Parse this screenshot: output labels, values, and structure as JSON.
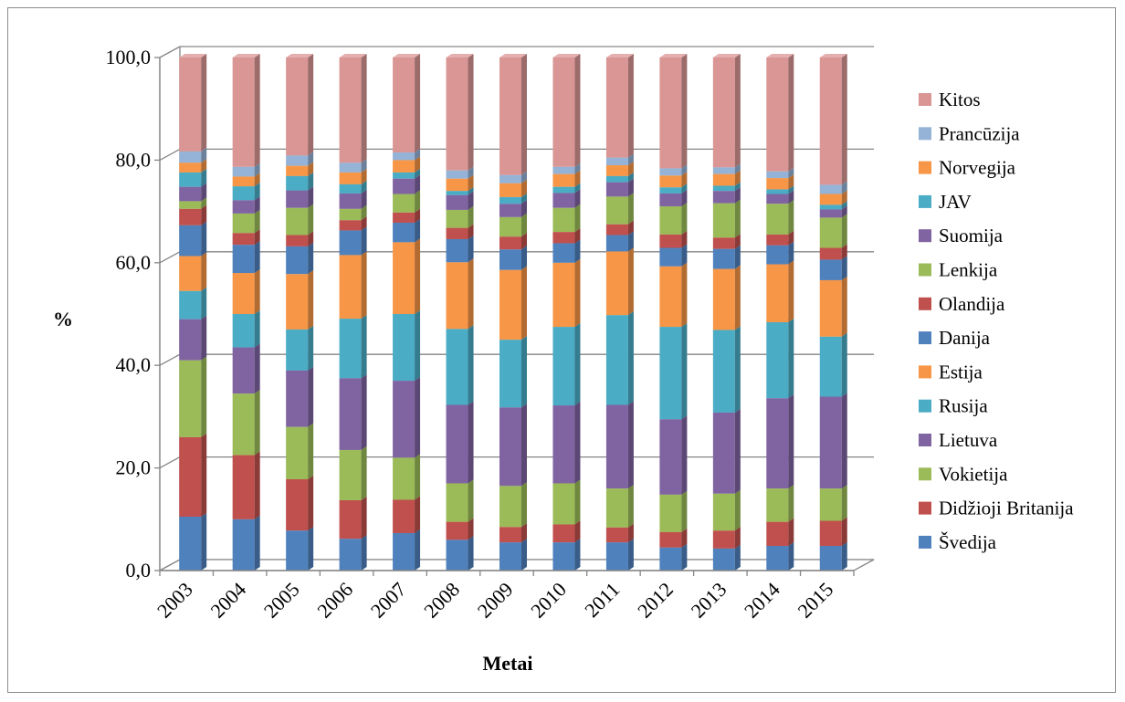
{
  "chart_data": {
    "type": "bar",
    "stacked": true,
    "three_d": true,
    "title": "",
    "xlabel": "Metai",
    "ylabel": "%",
    "ylim": [
      0,
      100
    ],
    "yticks": [
      "0,0",
      "20,0",
      "40,0",
      "60,0",
      "80,0",
      "100,0"
    ],
    "grid": true,
    "legend_position": "right",
    "categories": [
      "2003",
      "2004",
      "2005",
      "2006",
      "2007",
      "2008",
      "2009",
      "2010",
      "2011",
      "2012",
      "2013",
      "2014",
      "2015"
    ],
    "series": [
      {
        "name": "Švedija",
        "color": "#4F81BD",
        "values": [
          10.5,
          10.0,
          7.8,
          6.2,
          7.3,
          6.0,
          5.5,
          5.5,
          5.5,
          4.5,
          4.3,
          4.8,
          4.8
        ]
      },
      {
        "name": "Didžioji Britanija",
        "color": "#C0504D",
        "values": [
          15.5,
          12.5,
          10.0,
          7.5,
          6.5,
          3.5,
          3.0,
          3.5,
          2.9,
          3.0,
          3.5,
          4.7,
          4.9
        ]
      },
      {
        "name": "Vokietija",
        "color": "#9BBB59",
        "values": [
          15.0,
          12.0,
          10.2,
          9.8,
          8.2,
          7.5,
          8.0,
          8.0,
          7.6,
          7.3,
          7.2,
          6.5,
          6.3
        ]
      },
      {
        "name": "Lietuva",
        "color": "#8064A2",
        "values": [
          8.0,
          9.0,
          11.0,
          14.0,
          15.0,
          15.3,
          15.3,
          15.2,
          16.3,
          14.7,
          15.8,
          17.6,
          17.9
        ]
      },
      {
        "name": "Rusija",
        "color": "#4BACC6",
        "values": [
          5.5,
          6.5,
          8.0,
          11.6,
          13.0,
          14.8,
          13.2,
          15.3,
          17.5,
          18.0,
          16.1,
          14.8,
          11.7
        ]
      },
      {
        "name": "Estija",
        "color": "#F79646",
        "values": [
          6.8,
          8.0,
          10.8,
          12.4,
          14.0,
          13.0,
          13.6,
          12.5,
          12.4,
          11.8,
          11.9,
          11.3,
          11.0
        ]
      },
      {
        "name": "Danija",
        "color": "#4F81BD",
        "values": [
          6.0,
          5.5,
          5.4,
          4.8,
          3.8,
          4.5,
          4.0,
          3.8,
          3.2,
          3.6,
          3.9,
          3.7,
          4.0
        ]
      },
      {
        "name": "Olandija",
        "color": "#C0504D",
        "values": [
          3.2,
          2.3,
          2.2,
          2.0,
          2.0,
          2.2,
          2.5,
          2.2,
          2.1,
          2.6,
          2.2,
          2.1,
          2.3
        ]
      },
      {
        "name": "Lenkija",
        "color": "#9BBB59",
        "values": [
          1.5,
          3.8,
          5.3,
          2.2,
          3.6,
          3.5,
          3.8,
          4.7,
          5.4,
          5.5,
          6.7,
          6.0,
          5.9
        ]
      },
      {
        "name": "Suomija",
        "color": "#8064A2",
        "values": [
          2.8,
          2.6,
          3.4,
          3.0,
          3.0,
          2.9,
          2.6,
          2.9,
          2.8,
          2.5,
          2.4,
          1.9,
          1.6
        ]
      },
      {
        "name": "JAV",
        "color": "#4BACC6",
        "values": [
          2.8,
          2.7,
          2.8,
          1.8,
          1.2,
          0.8,
          1.3,
          1.2,
          1.2,
          1.2,
          1.0,
          0.9,
          0.9
        ]
      },
      {
        "name": "Norvegija",
        "color": "#F79646",
        "values": [
          1.9,
          1.9,
          2.0,
          2.3,
          2.4,
          2.4,
          2.7,
          2.5,
          2.1,
          2.3,
          2.3,
          2.2,
          2.1
        ]
      },
      {
        "name": "Prancūzija",
        "color": "#95B3D7",
        "values": [
          2.2,
          1.9,
          2.0,
          1.9,
          1.5,
          1.6,
          1.6,
          1.4,
          1.5,
          1.4,
          1.3,
          1.3,
          1.8
        ]
      },
      {
        "name": "Kitos",
        "color": "#D99694",
        "values": [
          18.3,
          21.3,
          19.1,
          20.5,
          18.5,
          22.0,
          22.9,
          21.3,
          19.5,
          21.6,
          21.4,
          22.2,
          24.8
        ]
      }
    ]
  }
}
